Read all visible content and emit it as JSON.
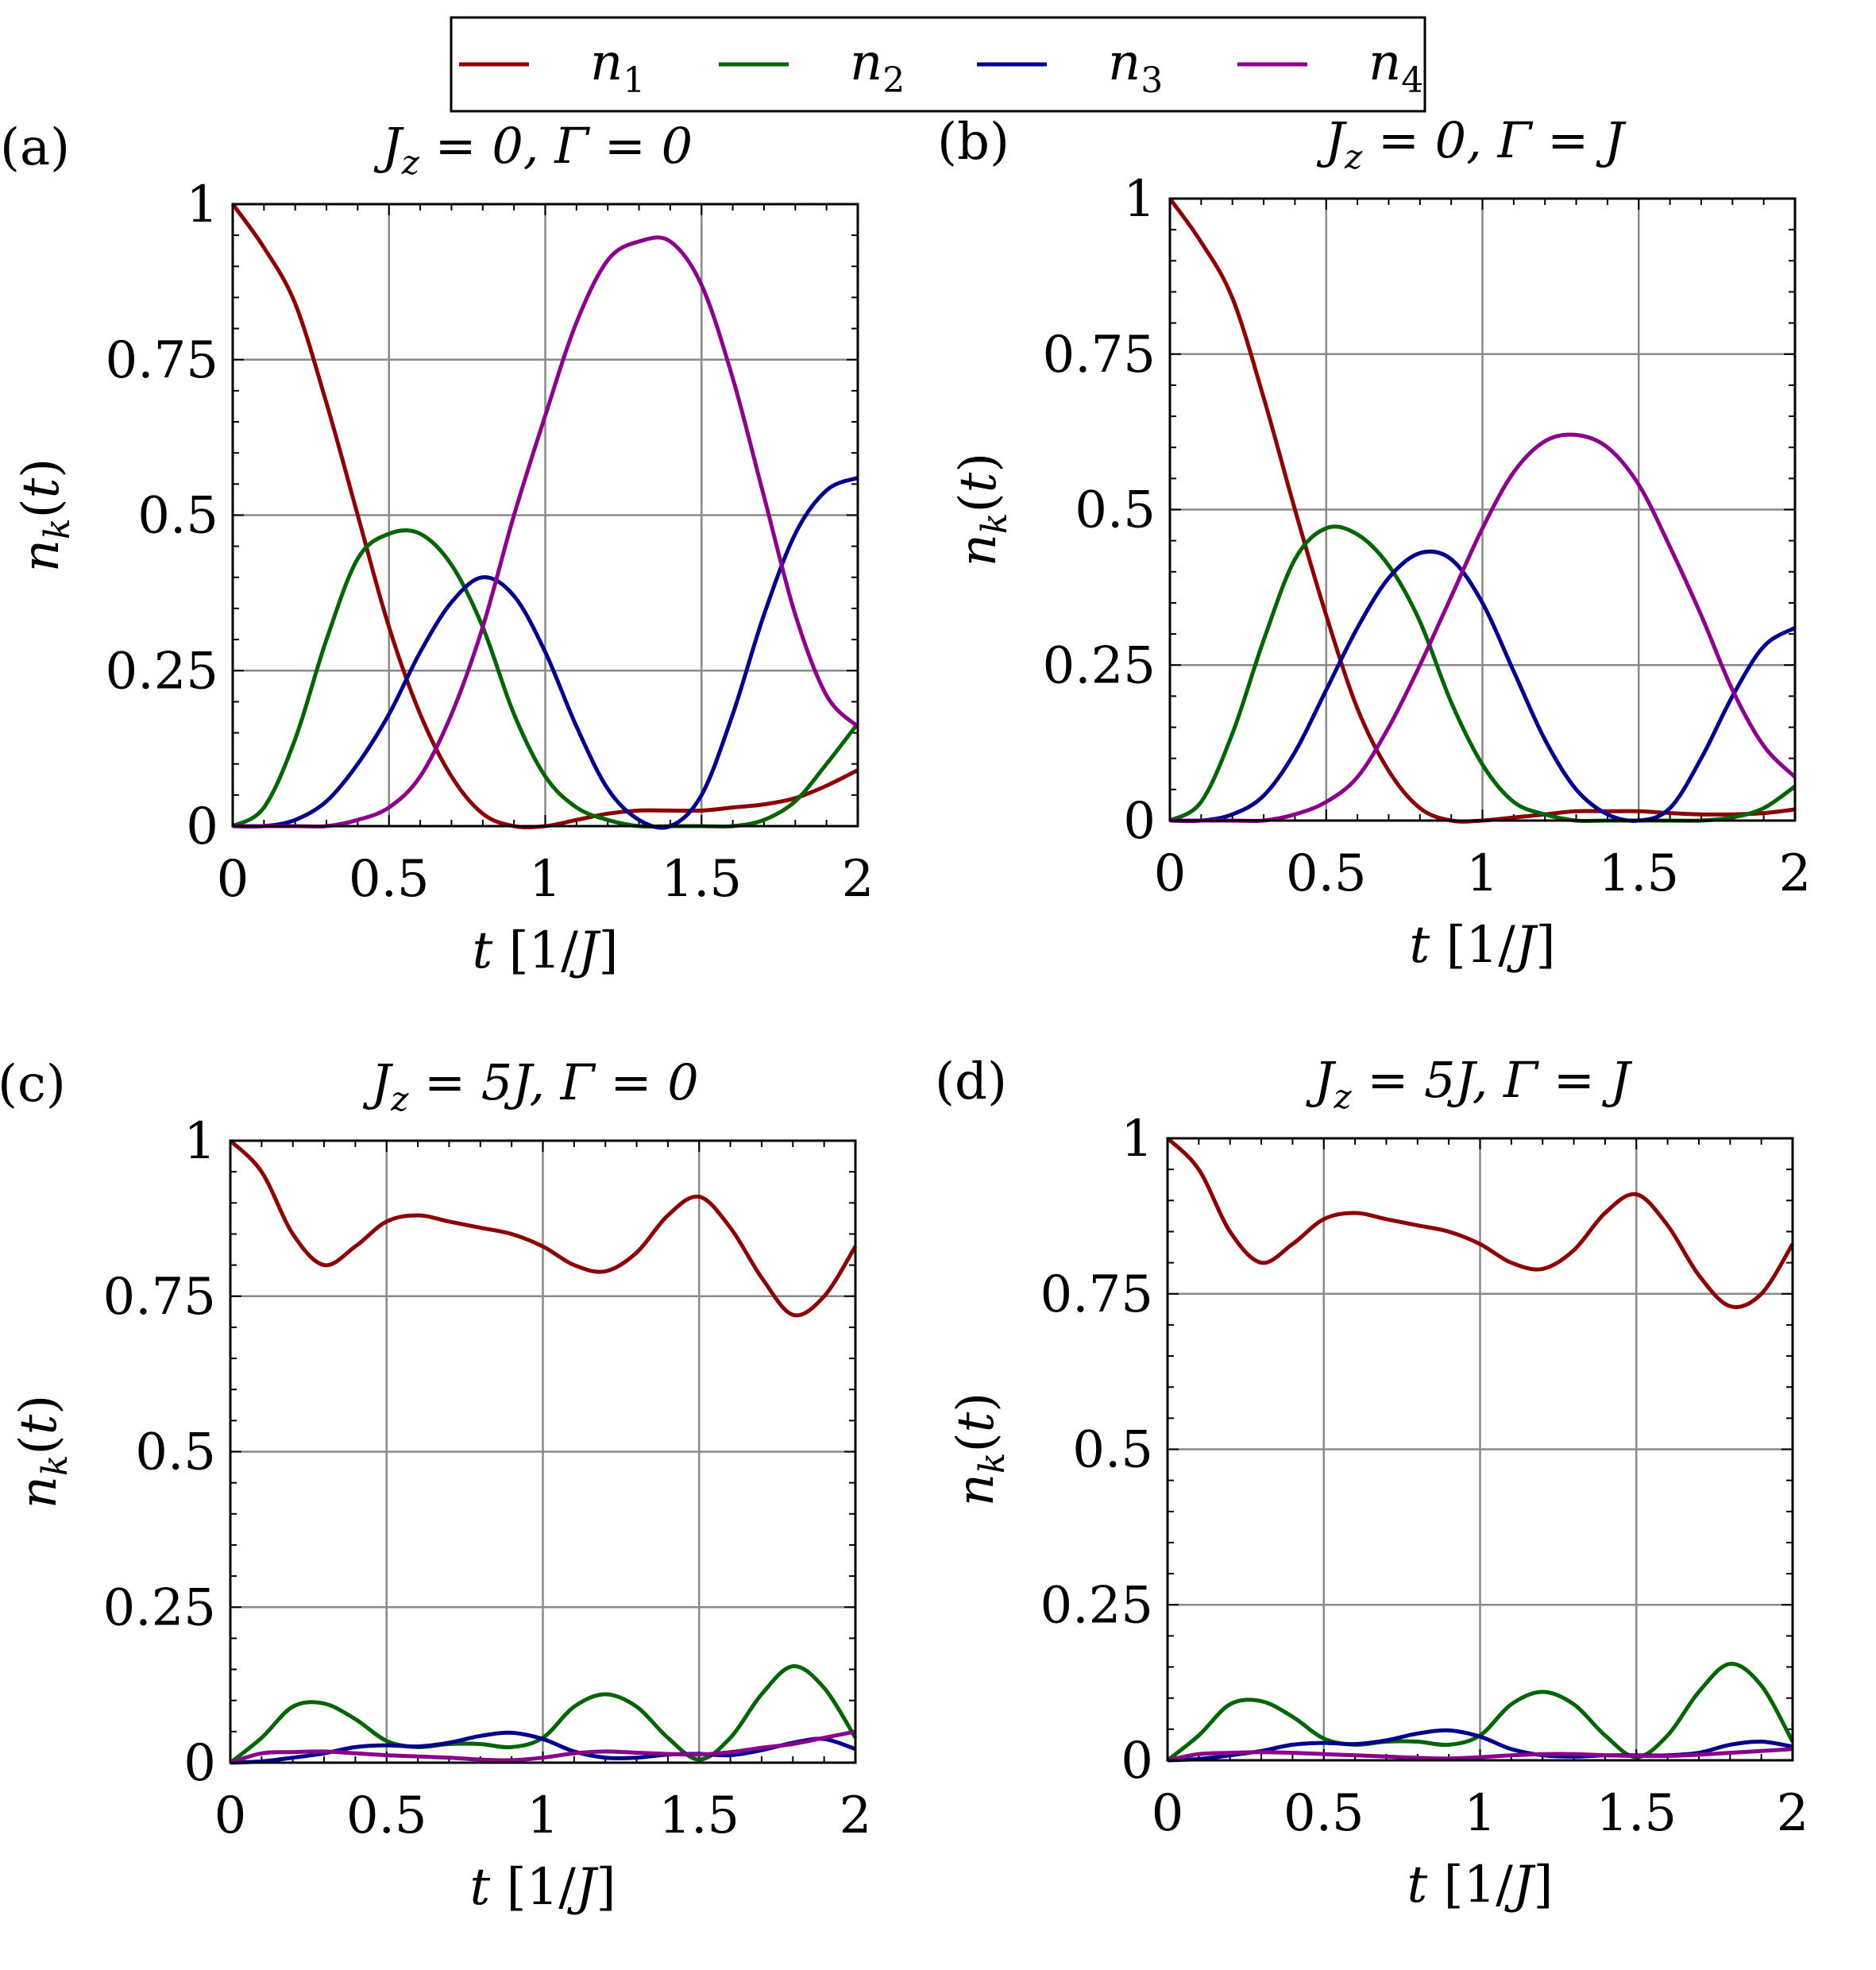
{
  "legend": {
    "items": [
      {
        "label": "n",
        "sub": "1",
        "color": "#8B0000"
      },
      {
        "label": "n",
        "sub": "2",
        "color": "#006400"
      },
      {
        "label": "n",
        "sub": "3",
        "color": "#00008B"
      },
      {
        "label": "n",
        "sub": "4",
        "color": "#8B008B"
      }
    ]
  },
  "chart_data": [
    {
      "type": "line",
      "panel_label": "(a)",
      "title": "J_z = 0, Γ = 0",
      "title_parts": [
        "J",
        "z",
        " = 0, Γ = 0"
      ],
      "xlabel": "t [1/J]",
      "ylabel": "n_k(t)",
      "xlim": [
        0,
        2
      ],
      "ylim": [
        0,
        1
      ],
      "xticks": [
        "0",
        "0.5",
        "1",
        "1.5",
        "2"
      ],
      "yticks": [
        "0",
        "0.25",
        "0.5",
        "0.75",
        "1"
      ],
      "grid": true,
      "x": [
        0,
        0.1,
        0.2,
        0.3,
        0.4,
        0.5,
        0.6,
        0.7,
        0.8,
        0.9,
        1.0,
        1.1,
        1.2,
        1.3,
        1.4,
        1.5,
        1.6,
        1.7,
        1.8,
        1.9,
        2.0
      ],
      "series": [
        {
          "name": "n1",
          "color": "#8B0000",
          "values": [
            1.0,
            0.93,
            0.84,
            0.68,
            0.5,
            0.32,
            0.18,
            0.08,
            0.02,
            0.0,
            0.0,
            0.01,
            0.02,
            0.025,
            0.025,
            0.025,
            0.03,
            0.035,
            0.045,
            0.065,
            0.09
          ]
        },
        {
          "name": "n2",
          "color": "#006400",
          "values": [
            0.0,
            0.03,
            0.14,
            0.3,
            0.43,
            0.47,
            0.47,
            0.42,
            0.32,
            0.18,
            0.08,
            0.03,
            0.01,
            0.0,
            0.0,
            0.0,
            0.0,
            0.01,
            0.04,
            0.1,
            0.165
          ]
        },
        {
          "name": "n3",
          "color": "#00008B",
          "values": [
            0.0,
            0.0,
            0.01,
            0.04,
            0.1,
            0.18,
            0.28,
            0.36,
            0.4,
            0.37,
            0.28,
            0.16,
            0.06,
            0.01,
            0.0,
            0.05,
            0.18,
            0.34,
            0.47,
            0.54,
            0.56
          ]
        },
        {
          "name": "n4",
          "color": "#8B008B",
          "values": [
            0.0,
            0.0,
            0.0,
            0.0,
            0.01,
            0.03,
            0.08,
            0.18,
            0.32,
            0.5,
            0.66,
            0.81,
            0.91,
            0.94,
            0.94,
            0.87,
            0.72,
            0.53,
            0.34,
            0.21,
            0.16
          ]
        }
      ]
    },
    {
      "type": "line",
      "panel_label": "(b)",
      "title": "J_z = 0, Γ = J",
      "title_parts": [
        "J",
        "z",
        " = 0, Γ = J"
      ],
      "xlabel": "t [1/J]",
      "ylabel": "n_k(t)",
      "xlim": [
        0,
        2
      ],
      "ylim": [
        0,
        1
      ],
      "xticks": [
        "0",
        "0.5",
        "1",
        "1.5",
        "2"
      ],
      "yticks": [
        "0",
        "0.25",
        "0.5",
        "0.75",
        "1"
      ],
      "grid": true,
      "x": [
        0,
        0.1,
        0.2,
        0.3,
        0.4,
        0.5,
        0.6,
        0.7,
        0.8,
        0.9,
        1.0,
        1.1,
        1.2,
        1.3,
        1.4,
        1.5,
        1.6,
        1.7,
        1.8,
        1.9,
        2.0
      ],
      "series": [
        {
          "name": "n1",
          "color": "#8B0000",
          "values": [
            1.0,
            0.93,
            0.84,
            0.68,
            0.5,
            0.33,
            0.18,
            0.08,
            0.02,
            0.0,
            0.0,
            0.005,
            0.01,
            0.015,
            0.015,
            0.015,
            0.012,
            0.01,
            0.01,
            0.012,
            0.018
          ]
        },
        {
          "name": "n2",
          "color": "#006400",
          "values": [
            0.0,
            0.03,
            0.14,
            0.29,
            0.42,
            0.47,
            0.46,
            0.41,
            0.32,
            0.19,
            0.09,
            0.03,
            0.01,
            0.0,
            0.0,
            0.0,
            0.0,
            0.0,
            0.005,
            0.02,
            0.055
          ]
        },
        {
          "name": "n3",
          "color": "#00008B",
          "values": [
            0.0,
            0.0,
            0.01,
            0.04,
            0.11,
            0.21,
            0.31,
            0.39,
            0.43,
            0.42,
            0.35,
            0.24,
            0.13,
            0.05,
            0.01,
            0.0,
            0.02,
            0.1,
            0.2,
            0.28,
            0.31
          ]
        },
        {
          "name": "n4",
          "color": "#8B008B",
          "values": [
            0.0,
            0.0,
            0.0,
            0.0,
            0.01,
            0.03,
            0.07,
            0.15,
            0.25,
            0.36,
            0.47,
            0.56,
            0.61,
            0.62,
            0.6,
            0.54,
            0.44,
            0.33,
            0.21,
            0.12,
            0.07
          ]
        }
      ]
    },
    {
      "type": "line",
      "panel_label": "(c)",
      "title": "J_z = 5J, Γ = 0",
      "title_parts": [
        "J",
        "z",
        " = 5J, Γ = 0"
      ],
      "xlabel": "t [1/J]",
      "ylabel": "n_k(t)",
      "xlim": [
        0,
        2
      ],
      "ylim": [
        0,
        1
      ],
      "xticks": [
        "0",
        "0.5",
        "1",
        "1.5",
        "2"
      ],
      "yticks": [
        "0",
        "0.25",
        "0.5",
        "0.75",
        "1"
      ],
      "grid": true,
      "x": [
        0,
        0.1,
        0.2,
        0.3,
        0.4,
        0.5,
        0.6,
        0.7,
        0.8,
        0.9,
        1.0,
        1.1,
        1.2,
        1.3,
        1.4,
        1.5,
        1.6,
        1.7,
        1.8,
        1.9,
        2.0
      ],
      "series": [
        {
          "name": "n1",
          "color": "#8B0000",
          "values": [
            1.0,
            0.95,
            0.85,
            0.8,
            0.83,
            0.87,
            0.88,
            0.87,
            0.86,
            0.85,
            0.83,
            0.8,
            0.79,
            0.82,
            0.88,
            0.91,
            0.86,
            0.78,
            0.72,
            0.75,
            0.83
          ]
        },
        {
          "name": "n2",
          "color": "#006400",
          "values": [
            0.0,
            0.04,
            0.09,
            0.095,
            0.07,
            0.035,
            0.025,
            0.03,
            0.03,
            0.025,
            0.04,
            0.09,
            0.11,
            0.09,
            0.04,
            0.005,
            0.04,
            0.11,
            0.155,
            0.12,
            0.04
          ]
        },
        {
          "name": "n3",
          "color": "#00008B",
          "values": [
            0.0,
            0.002,
            0.008,
            0.015,
            0.025,
            0.028,
            0.026,
            0.032,
            0.043,
            0.048,
            0.038,
            0.018,
            0.008,
            0.008,
            0.013,
            0.014,
            0.012,
            0.02,
            0.032,
            0.038,
            0.022
          ]
        },
        {
          "name": "n4",
          "color": "#8B008B",
          "values": [
            0.0,
            0.015,
            0.017,
            0.018,
            0.015,
            0.012,
            0.01,
            0.008,
            0.005,
            0.004,
            0.008,
            0.015,
            0.018,
            0.016,
            0.014,
            0.013,
            0.017,
            0.024,
            0.03,
            0.04,
            0.05
          ]
        }
      ]
    },
    {
      "type": "line",
      "panel_label": "(d)",
      "title": "J_z = 5J, Γ = J",
      "title_parts": [
        "J",
        "z",
        " = 5J, Γ = J"
      ],
      "xlabel": "t [1/J]",
      "ylabel": "n_k(t)",
      "xlim": [
        0,
        2
      ],
      "ylim": [
        0,
        1
      ],
      "xticks": [
        "0",
        "0.5",
        "1",
        "1.5",
        "2"
      ],
      "yticks": [
        "0",
        "0.25",
        "0.5",
        "0.75",
        "1"
      ],
      "grid": true,
      "x": [
        0,
        0.1,
        0.2,
        0.3,
        0.4,
        0.5,
        0.6,
        0.7,
        0.8,
        0.9,
        1.0,
        1.1,
        1.2,
        1.3,
        1.4,
        1.5,
        1.6,
        1.7,
        1.8,
        1.9,
        2.0
      ],
      "series": [
        {
          "name": "n1",
          "color": "#8B0000",
          "values": [
            1.0,
            0.95,
            0.85,
            0.8,
            0.83,
            0.87,
            0.88,
            0.87,
            0.86,
            0.85,
            0.83,
            0.8,
            0.79,
            0.82,
            0.88,
            0.91,
            0.86,
            0.78,
            0.73,
            0.75,
            0.83
          ]
        },
        {
          "name": "n2",
          "color": "#006400",
          "values": [
            0.0,
            0.04,
            0.09,
            0.095,
            0.07,
            0.035,
            0.025,
            0.03,
            0.03,
            0.025,
            0.04,
            0.09,
            0.11,
            0.09,
            0.04,
            0.005,
            0.04,
            0.11,
            0.155,
            0.12,
            0.03
          ]
        },
        {
          "name": "n3",
          "color": "#00008B",
          "values": [
            0.0,
            0.002,
            0.008,
            0.015,
            0.025,
            0.028,
            0.026,
            0.032,
            0.043,
            0.048,
            0.038,
            0.018,
            0.008,
            0.006,
            0.008,
            0.008,
            0.008,
            0.012,
            0.025,
            0.03,
            0.022
          ]
        },
        {
          "name": "n4",
          "color": "#8B008B",
          "values": [
            0.0,
            0.01,
            0.012,
            0.013,
            0.012,
            0.01,
            0.008,
            0.006,
            0.004,
            0.003,
            0.005,
            0.008,
            0.01,
            0.01,
            0.008,
            0.007,
            0.007,
            0.009,
            0.012,
            0.015,
            0.018
          ]
        }
      ]
    }
  ]
}
